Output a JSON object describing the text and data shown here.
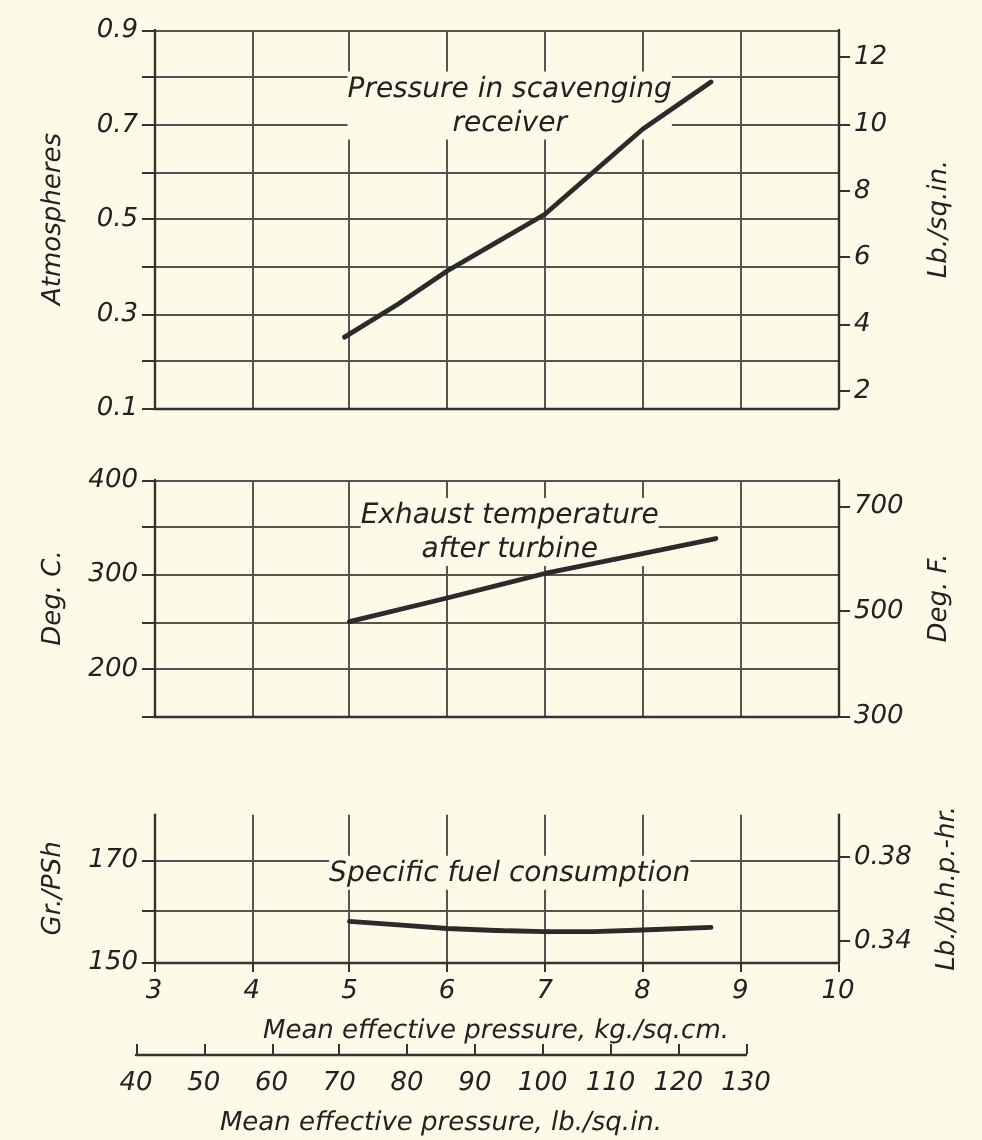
{
  "chart_data": [
    {
      "type": "line",
      "ylabel": "Atmospheres",
      "y2label": "Lb./sq.in.",
      "annotations": [
        "Pressure in scavenging\nreceiver"
      ],
      "x": [
        4.95,
        5.5,
        6,
        6.5,
        7,
        7.5,
        8,
        8.7
      ],
      "series": [
        {
          "color": "#2b2b2b",
          "values": [
            0.25,
            0.32,
            0.39,
            0.45,
            0.51,
            0.6,
            0.69,
            0.79
          ]
        }
      ],
      "xlim": [
        3,
        10
      ],
      "xticks": [
        3,
        4,
        5,
        6,
        7,
        8,
        9,
        10
      ],
      "ylim": [
        0.1,
        0.9
      ],
      "yticks": [
        0.1,
        {
          "value": 0.2,
          "label": null
        },
        0.3,
        {
          "value": 0.4,
          "label": null
        },
        0.5,
        {
          "value": 0.6,
          "label": null
        },
        0.7,
        {
          "value": 0.8,
          "label": null
        },
        0.9
      ],
      "y2lim": [
        1.5,
        12.8
      ],
      "y2ticks": [
        2,
        4,
        6,
        8,
        10,
        12
      ],
      "tick_labels": "y",
      "grid": true,
      "marker": "none"
    },
    {
      "type": "line",
      "ylabel": "Deg. C.",
      "y2label": "Deg. F.",
      "annotations": [
        "Exhaust temperature\nafter turbine"
      ],
      "x": [
        5,
        6,
        7,
        8,
        8.75
      ],
      "series": [
        {
          "color": "#2b2b2b",
          "values": [
            250,
            275,
            301,
            322,
            338
          ]
        }
      ],
      "xlim": [
        3,
        10
      ],
      "xticks": [
        3,
        4,
        5,
        6,
        7,
        8,
        9,
        10
      ],
      "ylim": [
        150,
        400
      ],
      "yticks": [
        {
          "value": 150,
          "label": null
        },
        200,
        {
          "value": 250,
          "label": null
        },
        300,
        {
          "value": 350,
          "label": null
        },
        400
      ],
      "y2lim": [
        300,
        750
      ],
      "y2ticks": [
        300,
        500,
        700
      ],
      "tick_labels": "y",
      "grid": true,
      "marker": "none"
    },
    {
      "type": "line",
      "ylabel": "Gr./PSh",
      "y2label": "Lb./b.h.p.-hr.",
      "xlabel": "Mean effective pressure, kg./sq.cm.",
      "annotations": [
        "Specific fuel consumption"
      ],
      "x": [
        5,
        5.5,
        6,
        6.5,
        7,
        7.5,
        8,
        8.7
      ],
      "series": [
        {
          "color": "#2b2b2b",
          "values": [
            158,
            157.3,
            156.6,
            156.2,
            156,
            156,
            156.3,
            156.8
          ]
        }
      ],
      "xlim": [
        3,
        10
      ],
      "xticks": [
        3,
        4,
        5,
        6,
        7,
        8,
        9,
        10
      ],
      "ylim": [
        150,
        179
      ],
      "yticks": [
        150,
        {
          "value": 160,
          "label": null
        },
        170
      ],
      "y2lim": [
        0.33,
        0.4
      ],
      "y2ticks": [
        0.34,
        0.38
      ],
      "x2lim": [
        40,
        130
      ],
      "x2ticks": [
        40,
        50,
        60,
        70,
        80,
        90,
        100,
        110,
        120,
        130
      ],
      "x2label": "Mean effective pressure, lb./sq.in.",
      "grid": true,
      "marker": "none"
    }
  ]
}
